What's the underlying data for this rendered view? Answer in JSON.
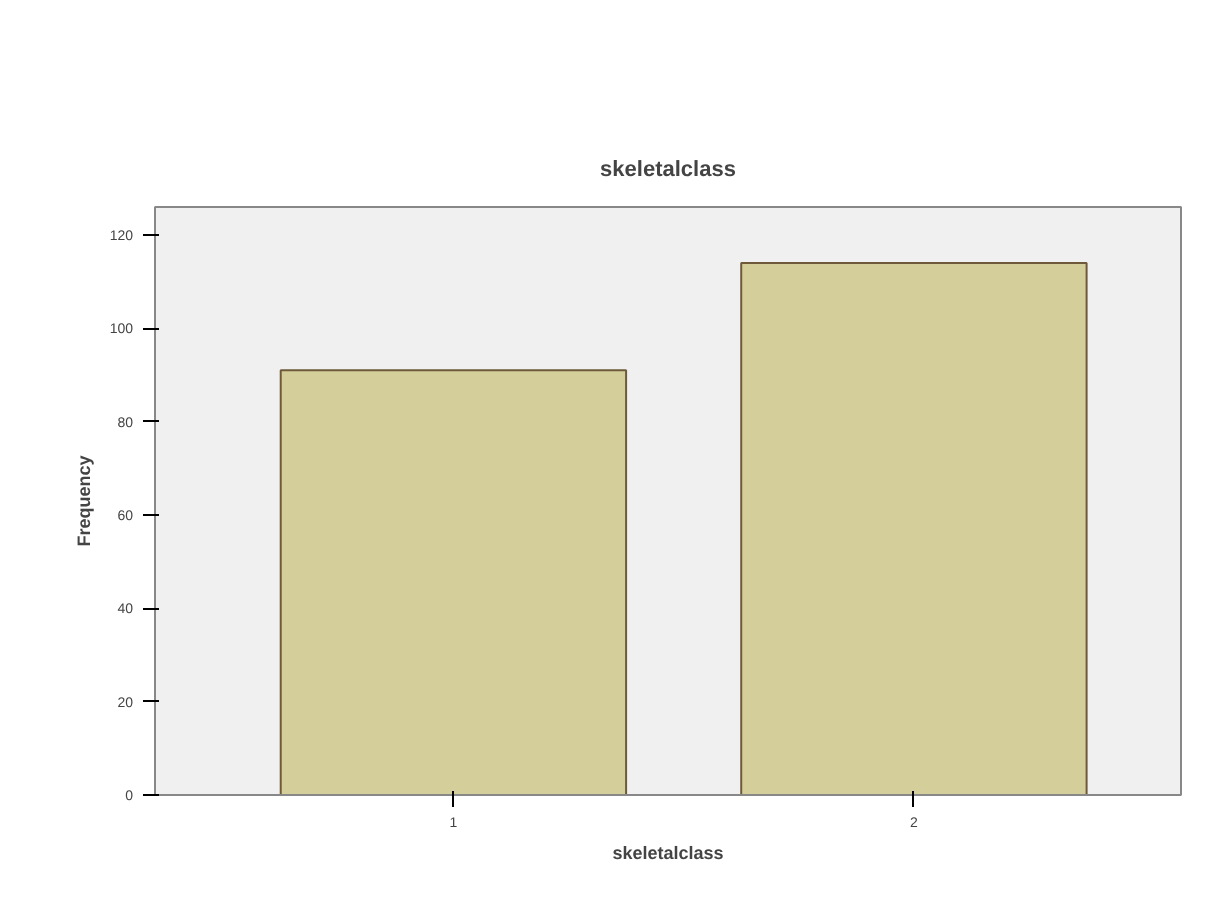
{
  "chart_data": {
    "type": "bar",
    "title": "skeletalclass",
    "xlabel": "skeletalclass",
    "ylabel": "Frequency",
    "categories": [
      "1",
      "2"
    ],
    "values": [
      91,
      114
    ],
    "color": "#d4cf9a",
    "ylim": [
      0,
      126
    ],
    "yticks": [
      0,
      20,
      40,
      60,
      80,
      100,
      120
    ],
    "grid": false,
    "legend": false
  }
}
